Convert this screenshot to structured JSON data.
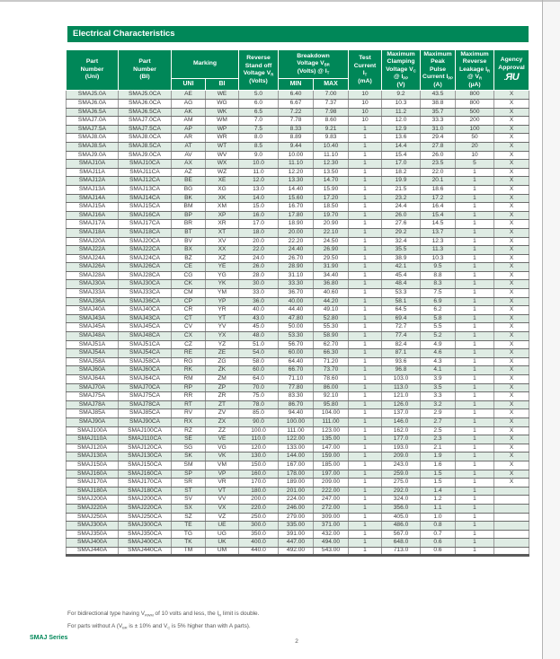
{
  "colors": {
    "green": "#008758",
    "row_alt": "#dfece4",
    "grid_dark": "#6b6b6b"
  },
  "page": {
    "section_title": "Electrical Characteristics",
    "notes": [
      "For bidirectional type having V~RWM~ of 10 volts and less, the I~R~ limit is double.",
      "For parts without A (V~BR~ is ± 10% and V~C~ is 5% higher than with A parts)."
    ],
    "footer_series": "SMAJ Series",
    "page_number": "2"
  },
  "table": {
    "header": {
      "part_uni": "Part\nNumber\n(Uni)",
      "part_bi": "Part\nNumber\n(BI)",
      "marking": "Marking",
      "sub_uni": "UNI",
      "sub_bi": "BI",
      "vr": "Reverse\nStand off\nVoltage V~R~\n(Volts)",
      "vbr": "Breakdown\nVoltage V~BR~\n(Volts) @ I~T~",
      "sub_min": "MIN",
      "sub_max": "MAX",
      "it": "Test\nCurrent\nI~T~\n(mA)",
      "vc": "Maximum\nClamping\nVoltage V~C~\n@ I~PP~\n(V)",
      "ipp": "Maximum\nPeak\nPulse\nCurrent I~PP~\n(A)",
      "ir": "Maximum\nReverse\nLeakage I~R~\n@ V~R~\n(µA)",
      "agency": "Agency\nApproval",
      "agency_mark": "ЯU"
    },
    "col_ids": [
      "part-number-uni",
      "part-number-bi",
      "marking-uni",
      "marking-bi",
      "reverse-standoff-voltage",
      "breakdown-min",
      "breakdown-max",
      "test-current",
      "max-clamping-voltage",
      "max-peak-pulse-current",
      "max-reverse-leakage",
      "agency-approval"
    ],
    "rows": [
      [
        "SMAJ5.0A",
        "SMAJ5.0CA",
        "AE",
        "WE",
        "5.0",
        "6.40",
        "7.00",
        "10",
        "9.2",
        "43.5",
        "800",
        "X"
      ],
      [
        "SMAJ6.0A",
        "SMAJ6.0CA",
        "AG",
        "WG",
        "6.0",
        "6.67",
        "7.37",
        "10",
        "10.3",
        "38.8",
        "800",
        "X"
      ],
      [
        "SMAJ6.5A",
        "SMAJ6.5CA",
        "AK",
        "WK",
        "6.5",
        "7.22",
        "7.98",
        "10",
        "11.2",
        "35.7",
        "500",
        "X"
      ],
      [
        "SMAJ7.0A",
        "SMAJ7.0CA",
        "AM",
        "WM",
        "7.0",
        "7.78",
        "8.60",
        "10",
        "12.0",
        "33.3",
        "200",
        "X"
      ],
      [
        "SMAJ7.5A",
        "SMAJ7.5CA",
        "AP",
        "WP",
        "7.5",
        "8.33",
        "9.21",
        "1",
        "12.9",
        "31.0",
        "100",
        "X"
      ],
      [
        "SMAJ8.0A",
        "SMAJ8.0CA",
        "AR",
        "WR",
        "8.0",
        "8.89",
        "9.83",
        "1",
        "13.6",
        "29.4",
        "50",
        "X"
      ],
      [
        "SMAJ8.5A",
        "SMAJ8.5CA",
        "AT",
        "WT",
        "8.5",
        "9.44",
        "10.40",
        "1",
        "14.4",
        "27.8",
        "20",
        "X"
      ],
      [
        "SMAJ9.0A",
        "SMAJ9.0CA",
        "AV",
        "WV",
        "9.0",
        "10.00",
        "11.10",
        "1",
        "15.4",
        "26.0",
        "10",
        "X"
      ],
      [
        "SMAJ10A",
        "SMAJ10CA",
        "AX",
        "WX",
        "10.0",
        "11.10",
        "12.30",
        "1",
        "17.0",
        "23.5",
        "5",
        "X"
      ],
      [
        "SMAJ11A",
        "SMAJ11CA",
        "AZ",
        "WZ",
        "11.0",
        "12.20",
        "13.50",
        "1",
        "18.2",
        "22.0",
        "1",
        "X"
      ],
      [
        "SMAJ12A",
        "SMAJ12CA",
        "BE",
        "XE",
        "12.0",
        "13.30",
        "14.70",
        "1",
        "19.9",
        "20.1",
        "1",
        "X"
      ],
      [
        "SMAJ13A",
        "SMAJ13CA",
        "BG",
        "XG",
        "13.0",
        "14.40",
        "15.90",
        "1",
        "21.5",
        "18.6",
        "1",
        "X"
      ],
      [
        "SMAJ14A",
        "SMAJ14CA",
        "BK",
        "XK",
        "14.0",
        "15.60",
        "17.20",
        "1",
        "23.2",
        "17.2",
        "1",
        "X"
      ],
      [
        "SMAJ15A",
        "SMAJ15CA",
        "BM",
        "XM",
        "15.0",
        "16.70",
        "18.50",
        "1",
        "24.4",
        "16.4",
        "1",
        "X"
      ],
      [
        "SMAJ16A",
        "SMAJ16CA",
        "BP",
        "XP",
        "16.0",
        "17.80",
        "19.70",
        "1",
        "26.0",
        "15.4",
        "1",
        "X"
      ],
      [
        "SMAJ17A",
        "SMAJ17CA",
        "BR",
        "XR",
        "17.0",
        "18.90",
        "20.90",
        "1",
        "27.6",
        "14.5",
        "1",
        "X"
      ],
      [
        "SMAJ18A",
        "SMAJ18CA",
        "BT",
        "XT",
        "18.0",
        "20.00",
        "22.10",
        "1",
        "29.2",
        "13.7",
        "1",
        "X"
      ],
      [
        "SMAJ20A",
        "SMAJ20CA",
        "BV",
        "XV",
        "20.0",
        "22.20",
        "24.50",
        "1",
        "32.4",
        "12.3",
        "1",
        "X"
      ],
      [
        "SMAJ22A",
        "SMAJ22CA",
        "BX",
        "XX",
        "22.0",
        "24.40",
        "26.90",
        "1",
        "35.5",
        "11.3",
        "1",
        "X"
      ],
      [
        "SMAJ24A",
        "SMAJ24CA",
        "BZ",
        "XZ",
        "24.0",
        "26.70",
        "29.50",
        "1",
        "38.9",
        "10.3",
        "1",
        "X"
      ],
      [
        "SMAJ26A",
        "SMAJ26CA",
        "CE",
        "YE",
        "26.0",
        "28.90",
        "31.90",
        "1",
        "42.1",
        "9.5",
        "1",
        "X"
      ],
      [
        "SMAJ28A",
        "SMAJ28CA",
        "CG",
        "YG",
        "28.0",
        "31.10",
        "34.40",
        "1",
        "45.4",
        "8.8",
        "1",
        "X"
      ],
      [
        "SMAJ30A",
        "SMAJ30CA",
        "CK",
        "YK",
        "30.0",
        "33.30",
        "36.80",
        "1",
        "48.4",
        "8.3",
        "1",
        "X"
      ],
      [
        "SMAJ33A",
        "SMAJ33CA",
        "CM",
        "YM",
        "33.0",
        "36.70",
        "40.60",
        "1",
        "53.3",
        "7.5",
        "1",
        "X"
      ],
      [
        "SMAJ36A",
        "SMAJ36CA",
        "CP",
        "YP",
        "36.0",
        "40.00",
        "44.20",
        "1",
        "58.1",
        "6.9",
        "1",
        "X"
      ],
      [
        "SMAJ40A",
        "SMAJ40CA",
        "CR",
        "YR",
        "40.0",
        "44.40",
        "49.10",
        "1",
        "64.5",
        "6.2",
        "1",
        "X"
      ],
      [
        "SMAJ43A",
        "SMAJ43CA",
        "CT",
        "YT",
        "43.0",
        "47.80",
        "52.80",
        "1",
        "69.4",
        "5.8",
        "1",
        "X"
      ],
      [
        "SMAJ45A",
        "SMAJ45CA",
        "CV",
        "YV",
        "45.0",
        "50.00",
        "55.30",
        "1",
        "72.7",
        "5.5",
        "1",
        "X"
      ],
      [
        "SMAJ48A",
        "SMAJ48CA",
        "CX",
        "YX",
        "48.0",
        "53.30",
        "58.90",
        "1",
        "77.4",
        "5.2",
        "1",
        "X"
      ],
      [
        "SMAJ51A",
        "SMAJ51CA",
        "CZ",
        "YZ",
        "51.0",
        "56.70",
        "62.70",
        "1",
        "82.4",
        "4.9",
        "1",
        "X"
      ],
      [
        "SMAJ54A",
        "SMAJ54CA",
        "RE",
        "ZE",
        "54.0",
        "60.00",
        "66.30",
        "1",
        "87.1",
        "4.6",
        "1",
        "X"
      ],
      [
        "SMAJ58A",
        "SMAJ58CA",
        "RG",
        "ZG",
        "58.0",
        "64.40",
        "71.20",
        "1",
        "93.6",
        "4.3",
        "1",
        "X"
      ],
      [
        "SMAJ60A",
        "SMAJ60CA",
        "RK",
        "ZK",
        "60.0",
        "66.70",
        "73.70",
        "1",
        "96.8",
        "4.1",
        "1",
        "X"
      ],
      [
        "SMAJ64A",
        "SMAJ64CA",
        "RM",
        "ZM",
        "64.0",
        "71.10",
        "78.60",
        "1",
        "103.0",
        "3.9",
        "1",
        "X"
      ],
      [
        "SMAJ70A",
        "SMAJ70CA",
        "RP",
        "ZP",
        "70.0",
        "77.80",
        "86.00",
        "1",
        "113.0",
        "3.5",
        "1",
        "X"
      ],
      [
        "SMAJ75A",
        "SMAJ75CA",
        "RR",
        "ZR",
        "75.0",
        "83.30",
        "92.10",
        "1",
        "121.0",
        "3.3",
        "1",
        "X"
      ],
      [
        "SMAJ78A",
        "SMAJ78CA",
        "RT",
        "ZT",
        "78.0",
        "86.70",
        "95.80",
        "1",
        "126.0",
        "3.2",
        "1",
        "X"
      ],
      [
        "SMAJ85A",
        "SMAJ85CA",
        "RV",
        "ZV",
        "85.0",
        "94.40",
        "104.00",
        "1",
        "137.0",
        "2.9",
        "1",
        "X"
      ],
      [
        "SMAJ90A",
        "SMAJ90CA",
        "RX",
        "ZX",
        "90.0",
        "100.00",
        "111.00",
        "1",
        "146.0",
        "2.7",
        "1",
        "X"
      ],
      [
        "SMAJ100A",
        "SMAJ100CA",
        "RZ",
        "ZZ",
        "100.0",
        "111.00",
        "123.00",
        "1",
        "162.0",
        "2.5",
        "1",
        "X"
      ],
      [
        "SMAJ110A",
        "SMAJ110CA",
        "SE",
        "VE",
        "110.0",
        "122.00",
        "135.00",
        "1",
        "177.0",
        "2.3",
        "1",
        "X"
      ],
      [
        "SMAJ120A",
        "SMAJ120CA",
        "SG",
        "VG",
        "120.0",
        "133.00",
        "147.00",
        "1",
        "193.0",
        "2.1",
        "1",
        "X"
      ],
      [
        "SMAJ130A",
        "SMAJ130CA",
        "SK",
        "VK",
        "130.0",
        "144.00",
        "159.00",
        "1",
        "209.0",
        "1.9",
        "1",
        "X"
      ],
      [
        "SMAJ150A",
        "SMAJ150CA",
        "SM",
        "VM",
        "150.0",
        "167.00",
        "185.00",
        "1",
        "243.0",
        "1.6",
        "1",
        "X"
      ],
      [
        "SMAJ160A",
        "SMAJ160CA",
        "SP",
        "VP",
        "160.0",
        "178.00",
        "197.00",
        "1",
        "259.0",
        "1.5",
        "1",
        "X"
      ],
      [
        "SMAJ170A",
        "SMAJ170CA",
        "SR",
        "VR",
        "170.0",
        "189.00",
        "209.00",
        "1",
        "275.0",
        "1.5",
        "1",
        "X"
      ],
      [
        "SMAJ180A",
        "SMAJ180CA",
        "ST",
        "VT",
        "180.0",
        "201.00",
        "222.00",
        "1",
        "292.0",
        "1.4",
        "1",
        ""
      ],
      [
        "SMAJ200A",
        "SMAJ200CA",
        "SV",
        "VV",
        "200.0",
        "224.00",
        "247.00",
        "1",
        "324.0",
        "1.2",
        "1",
        ""
      ],
      [
        "SMAJ220A",
        "SMAJ220CA",
        "SX",
        "VX",
        "220.0",
        "246.00",
        "272.00",
        "1",
        "356.0",
        "1.1",
        "1",
        ""
      ],
      [
        "SMAJ250A",
        "SMAJ250CA",
        "SZ",
        "VZ",
        "250.0",
        "279.00",
        "309.00",
        "1",
        "405.0",
        "1.0",
        "1",
        ""
      ],
      [
        "SMAJ300A",
        "SMAJ300CA",
        "TE",
        "UE",
        "300.0",
        "335.00",
        "371.00",
        "1",
        "486.0",
        "0.8",
        "1",
        ""
      ],
      [
        "SMAJ350A",
        "SMAJ350CA",
        "TG",
        "UG",
        "350.0",
        "391.00",
        "432.00",
        "1",
        "567.0",
        "0.7",
        "1",
        ""
      ],
      [
        "SMAJ400A",
        "SMAJ400CA",
        "TK",
        "UK",
        "400.0",
        "447.00",
        "494.00",
        "1",
        "648.0",
        "0.6",
        "1",
        ""
      ],
      [
        "SMAJ440A",
        "SMAJ440CA",
        "TM",
        "UM",
        "440.0",
        "492.00",
        "543.00",
        "1",
        "713.0",
        "0.6",
        "1",
        ""
      ]
    ]
  }
}
